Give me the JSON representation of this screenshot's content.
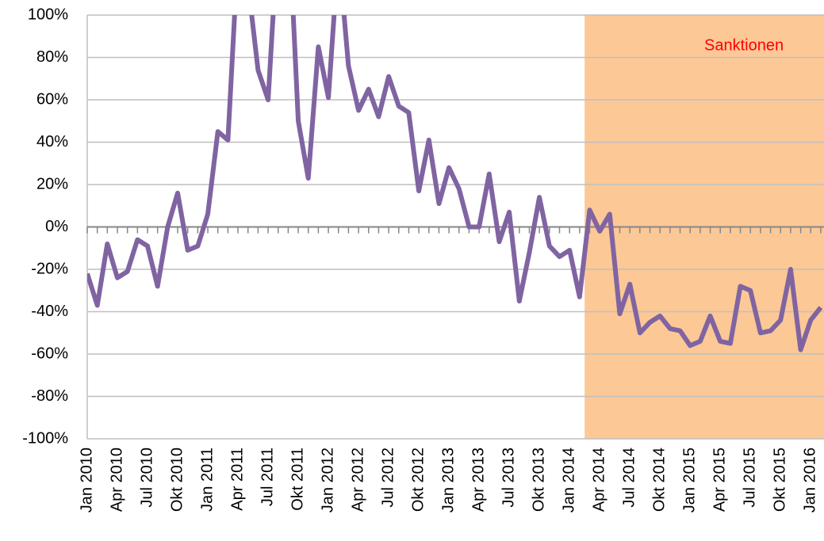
{
  "chart_data": {
    "type": "line",
    "categories": [
      "Jan 2010",
      null,
      null,
      "Apr 2010",
      null,
      null,
      "Jul 2010",
      null,
      null,
      "Okt 2010",
      null,
      null,
      "Jan 2011",
      null,
      null,
      "Apr 2011",
      null,
      null,
      "Jul 2011",
      null,
      null,
      "Okt 2011",
      null,
      null,
      "Jan 2012",
      null,
      null,
      "Apr 2012",
      null,
      null,
      "Jul 2012",
      null,
      null,
      "Okt 2012",
      null,
      null,
      "Jan 2013",
      null,
      null,
      "Apr 2013",
      null,
      null,
      "Jul 2013",
      null,
      null,
      "Okt 2013",
      null,
      null,
      "Jan 2014",
      null,
      null,
      "Apr 2014",
      null,
      null,
      "Jul 2014",
      null,
      null,
      "Okt 2014",
      null,
      null,
      "Jan 2015",
      null,
      null,
      "Apr 2015",
      null,
      null,
      "Jul 2015",
      null,
      null,
      "Okt 2015",
      null,
      null,
      "Jan 2016",
      null
    ],
    "series": [
      {
        "color": "#8064a2",
        "values": [
          -22,
          -37,
          -8,
          -24,
          -21,
          -6,
          -9,
          -28,
          0,
          16,
          -11,
          -9,
          6,
          45,
          41,
          130,
          115,
          74,
          60,
          140,
          150,
          50,
          23,
          85,
          61,
          130,
          76,
          55,
          65,
          52,
          71,
          57,
          54,
          17,
          41,
          11,
          28,
          18,
          0,
          0,
          25,
          -7,
          7,
          -35,
          -12,
          14,
          -9,
          -14,
          -11,
          -33,
          8,
          -2,
          6,
          -41,
          -27,
          -50,
          -45,
          -42,
          -48,
          -49,
          -56,
          -54,
          -42,
          -54,
          -55,
          -28,
          -30,
          -50,
          -49,
          -44,
          -20,
          -58,
          -44,
          -38
        ]
      }
    ],
    "ylim": [
      -100,
      100
    ],
    "yticks": [
      {
        "value": -100,
        "label": "-100%"
      },
      {
        "value": -80,
        "label": "-80%"
      },
      {
        "value": -60,
        "label": "-60%"
      },
      {
        "value": -40,
        "label": "-40%"
      },
      {
        "value": -20,
        "label": "-20%"
      },
      {
        "value": 0,
        "label": "0%"
      },
      {
        "value": 20,
        "label": "20%"
      },
      {
        "value": 40,
        "label": "40%"
      },
      {
        "value": 60,
        "label": "60%"
      },
      {
        "value": 80,
        "label": "80%"
      },
      {
        "value": 100,
        "label": "100%"
      }
    ],
    "grid": true,
    "annotation": {
      "text": "Sanktionen",
      "from_index": 49.5,
      "color": "#fcc896",
      "text_color": "#ff0000"
    }
  }
}
